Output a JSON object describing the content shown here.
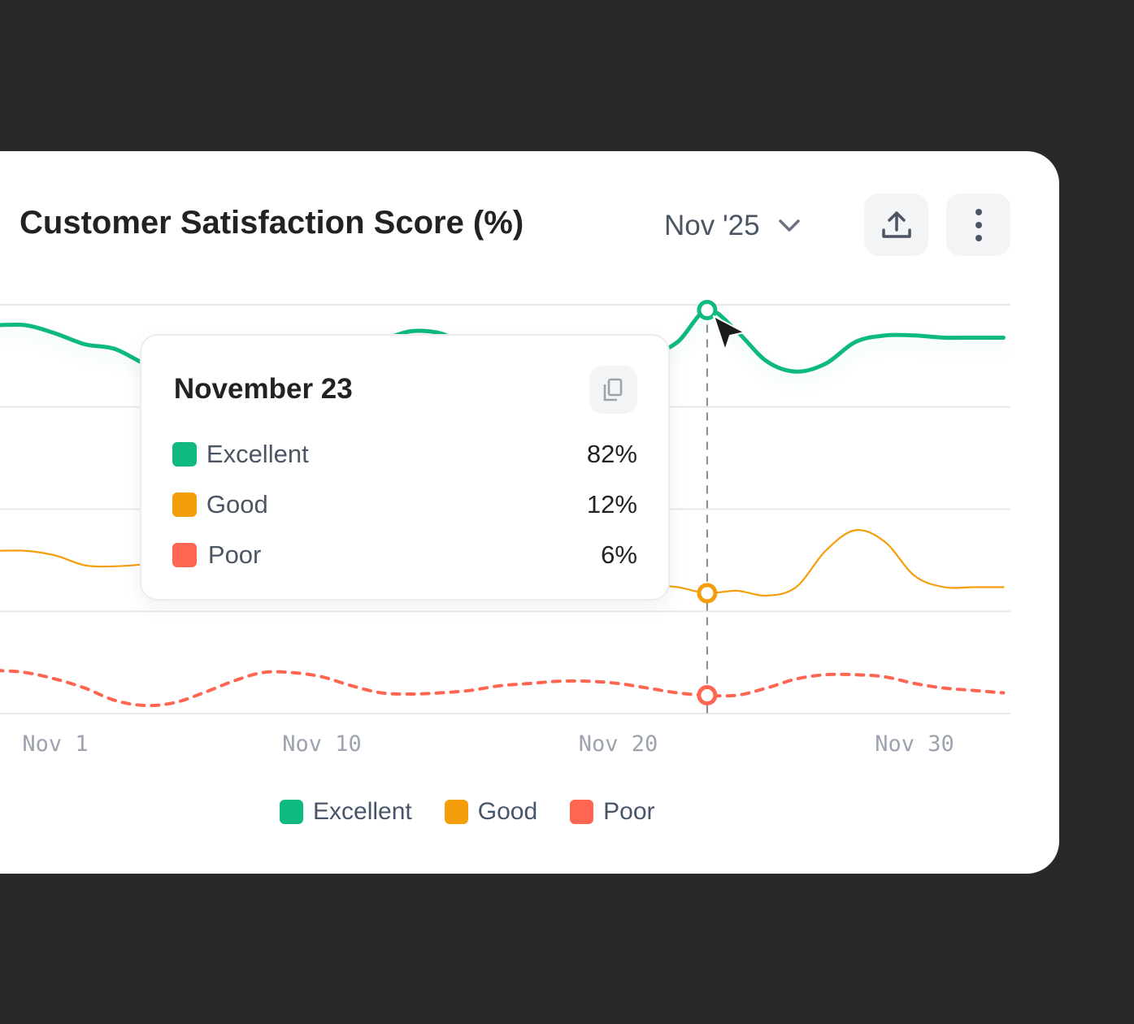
{
  "header": {
    "title": "Customer Satisfaction Score (%)",
    "period": "Nov '25",
    "export_icon": "upload-icon",
    "more_icon": "more-vertical-icon"
  },
  "tooltip": {
    "title": "November 23",
    "copy_icon": "copy-icon",
    "rows": [
      {
        "name": "Excellent",
        "value": "82%",
        "color": "#10B981"
      },
      {
        "name": "Good",
        "value": "12%",
        "color": "#F59E0B"
      },
      {
        "name": "Poor",
        "value": "6%",
        "color": "#FF6651"
      }
    ]
  },
  "legend": [
    {
      "name": "Excellent",
      "color": "#10B981"
    },
    {
      "name": "Good",
      "color": "#F59E0B"
    },
    {
      "name": "Poor",
      "color": "#FF6651"
    }
  ],
  "chart_data": {
    "type": "line",
    "title": "Customer Satisfaction Score (%)",
    "xlabel": "",
    "ylabel": "",
    "y_scale": "log",
    "ylim": [
      5.3,
      85
    ],
    "grid": true,
    "legend_position": "bottom",
    "x_ticks": [
      {
        "date": "2025-11-01",
        "label": "Nov 1"
      },
      {
        "date": "2025-11-10",
        "label": "Nov 10"
      },
      {
        "date": "2025-11-20",
        "label": "Nov 20"
      },
      {
        "date": "2025-11-30",
        "label": "Nov 30"
      }
    ],
    "hover_date": "2025-11-23",
    "x": [
      "2025-10-29",
      "2025-10-30",
      "2025-10-31",
      "2025-11-01",
      "2025-11-02",
      "2025-11-03",
      "2025-11-04",
      "2025-11-05",
      "2025-11-06",
      "2025-11-07",
      "2025-11-08",
      "2025-11-09",
      "2025-11-10",
      "2025-11-11",
      "2025-11-12",
      "2025-11-13",
      "2025-11-14",
      "2025-11-15",
      "2025-11-16",
      "2025-11-17",
      "2025-11-18",
      "2025-11-19",
      "2025-11-20",
      "2025-11-21",
      "2025-11-22",
      "2025-11-23",
      "2025-11-24",
      "2025-11-25",
      "2025-11-26",
      "2025-11-27",
      "2025-11-28",
      "2025-11-29",
      "2025-11-30",
      "2025-12-01",
      "2025-12-02",
      "2025-12-03"
    ],
    "series": [
      {
        "name": "Excellent",
        "color": "#10B981",
        "style": "solid-thick",
        "values": [
          74,
          74,
          74,
          70,
          65,
          63,
          57,
          53,
          53,
          56,
          60,
          63,
          65,
          66,
          67,
          71,
          70,
          64,
          60,
          58,
          57,
          57,
          58,
          60,
          66,
          82,
          71,
          58,
          54,
          57,
          66,
          69,
          69,
          68,
          68,
          68
        ]
      },
      {
        "name": "Good",
        "color": "#F59E0B",
        "style": "solid-thin",
        "values": [
          16,
          16,
          16,
          15.5,
          14.5,
          14.4,
          14.6,
          15,
          15,
          14.6,
          14.2,
          14,
          13.8,
          13.6,
          13.5,
          13.4,
          13.3,
          13.2,
          13.1,
          13,
          12.9,
          12.8,
          12.7,
          12.7,
          12.5,
          12,
          12.2,
          11.8,
          12.5,
          16,
          18.4,
          17,
          13.5,
          12.5,
          12.5,
          12.5
        ]
      },
      {
        "name": "Poor",
        "color": "#FF6651",
        "style": "dashed",
        "values": [
          7.1,
          7.1,
          7.0,
          6.7,
          6.3,
          5.8,
          5.6,
          5.7,
          6.1,
          6.6,
          7.0,
          7.0,
          6.8,
          6.4,
          6.1,
          6.05,
          6.1,
          6.2,
          6.4,
          6.5,
          6.6,
          6.6,
          6.5,
          6.3,
          6.1,
          6.0,
          6.0,
          6.3,
          6.7,
          6.9,
          6.9,
          6.8,
          6.5,
          6.3,
          6.2,
          6.1
        ]
      }
    ]
  }
}
